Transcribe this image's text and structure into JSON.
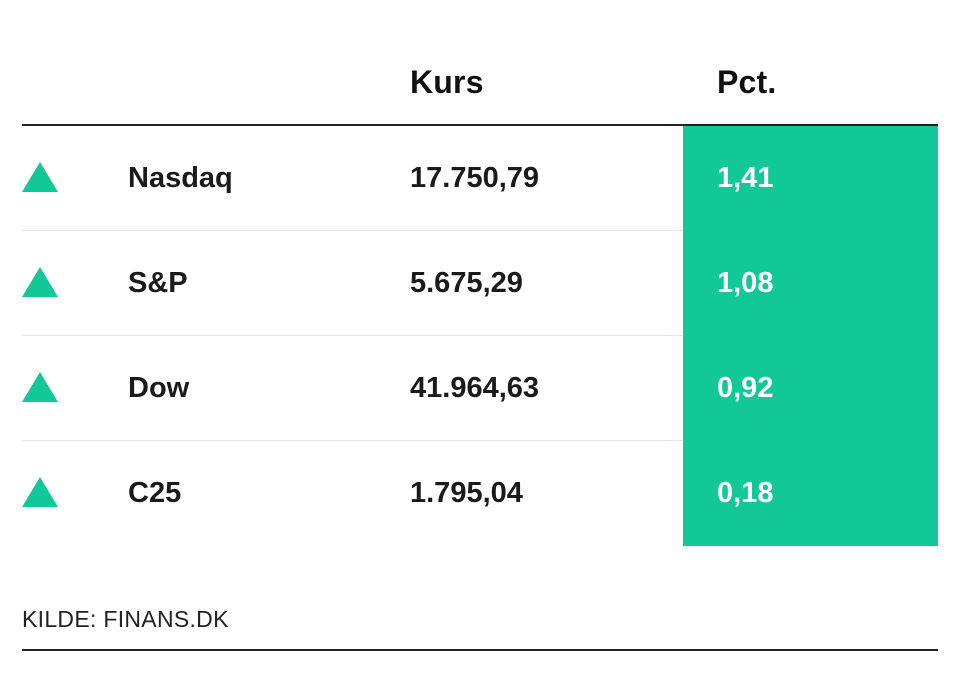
{
  "colors": {
    "positive": "#12c896",
    "text": "#1a1a1a",
    "pct_text": "#ffffff"
  },
  "chart_data": {
    "type": "table",
    "columns": [
      "",
      "",
      "Kurs",
      "Pct."
    ],
    "rows": [
      {
        "direction": "up",
        "name": "Nasdaq",
        "kurs": "17.750,79",
        "pct": "1,41"
      },
      {
        "direction": "up",
        "name": "S&P",
        "kurs": "5.675,29",
        "pct": "1,08"
      },
      {
        "direction": "up",
        "name": "Dow",
        "kurs": "41.964,63",
        "pct": "0,92"
      },
      {
        "direction": "up",
        "name": "C25",
        "kurs": "1.795,04",
        "pct": "0,18"
      }
    ],
    "source": "KILDE: FINANS.DK"
  }
}
